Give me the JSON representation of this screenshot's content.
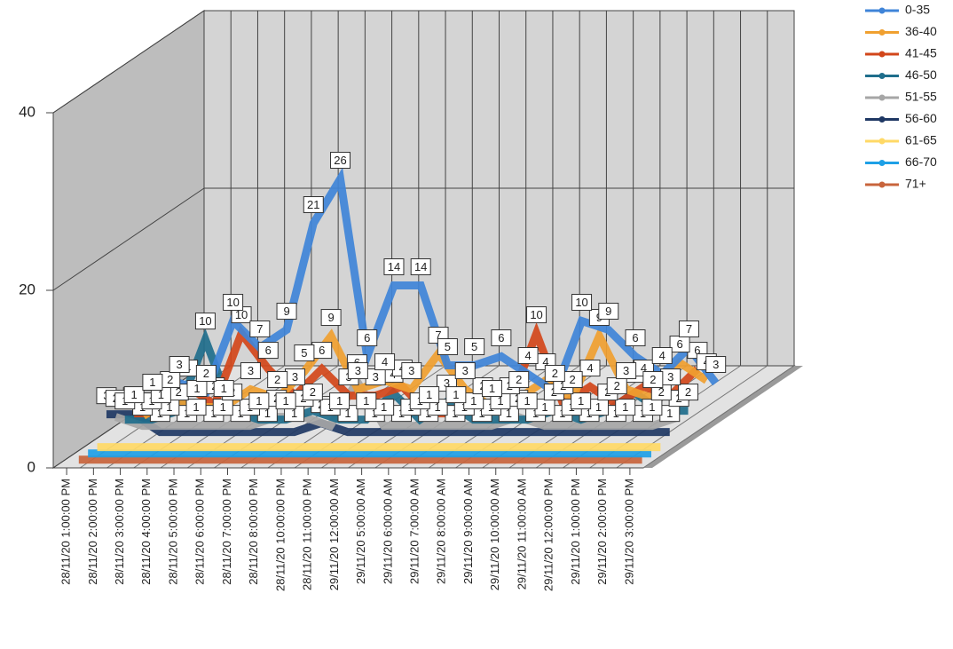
{
  "chart_data": {
    "type": "line3d",
    "categories": [
      "28/11/20 1:00:00 PM",
      "28/11/20 2:00:00 PM",
      "28/11/20 3:00:00 PM",
      "28/11/20 4:00:00 PM",
      "28/11/20 5:00:00 PM",
      "28/11/20 6:00:00 PM",
      "28/11/20 7:00:00 PM",
      "28/11/20 8:00:00 PM",
      "28/11/20 10:00:00 PM",
      "28/11/20 11:00:00 PM",
      "29/11/20 12:00:00 AM",
      "29/11/20 5:00:00 AM",
      "29/11/20 6:00:00 AM",
      "29/11/20 7:00:00 AM",
      "29/11/20 8:00:00 AM",
      "29/11/20 9:00:00 AM",
      "29/11/20 10:00:00 AM",
      "29/11/20 11:00:00 AM",
      "29/11/20 12:00:00 PM",
      "29/11/20 1:00:00 PM",
      "29/11/20 2:00:00 PM",
      "29/11/20 3:00:00 PM"
    ],
    "series": [
      {
        "name": "0-35",
        "color": "#3f84d8",
        "values": [
          1,
          3,
          2,
          10,
          7,
          9,
          21,
          26,
          6,
          14,
          14,
          5,
          5,
          6,
          4,
          2,
          10,
          9,
          6,
          4,
          7,
          3
        ]
      },
      {
        "name": "36-40",
        "color": "#f0a030",
        "values": [
          0,
          2,
          1,
          1,
          3,
          2,
          5,
          9,
          3,
          4,
          3,
          7,
          3,
          1,
          2,
          4,
          2,
          9,
          3,
          2,
          6,
          4
        ]
      },
      {
        "name": "41-45",
        "color": "#d2461a",
        "values": [
          1,
          1,
          4,
          2,
          10,
          6,
          3,
          6,
          3,
          3,
          4,
          1,
          1,
          2,
          2,
          10,
          2,
          4,
          2,
          4,
          3,
          6
        ]
      },
      {
        "name": "46-50",
        "color": "#1f6e8c",
        "values": [
          1,
          1,
          2,
          10,
          2,
          1,
          1,
          2,
          1,
          1,
          4,
          1,
          3,
          1,
          1,
          1,
          2,
          1,
          2,
          4,
          2,
          2
        ]
      },
      {
        "name": "51-55",
        "color": "#a6a6a6",
        "values": [
          2,
          1,
          1,
          1,
          1,
          1,
          2,
          2,
          1,
          6,
          1,
          1,
          1,
          1,
          1,
          2,
          1,
          1,
          1,
          1,
          1,
          2
        ]
      },
      {
        "name": "56-60",
        "color": "#1f3864",
        "values": [
          3,
          3,
          1,
          1,
          1,
          1,
          1,
          1,
          2,
          1,
          1,
          1,
          1,
          1,
          1,
          1,
          1,
          1,
          1,
          1,
          1,
          1
        ]
      },
      {
        "name": "61-65",
        "color": "#ffd966",
        "values": [
          0,
          0,
          0,
          0,
          0,
          0,
          0,
          0,
          0,
          0,
          0,
          0,
          0,
          0,
          0,
          0,
          0,
          0,
          0,
          0,
          0,
          0
        ]
      },
      {
        "name": "66-70",
        "color": "#1ea0e6",
        "values": [
          0,
          0,
          0,
          0,
          0,
          0,
          0,
          0,
          0,
          0,
          0,
          0,
          0,
          0,
          0,
          0,
          0,
          0,
          0,
          0,
          0,
          0
        ]
      },
      {
        "name": "71+",
        "color": "#c8643c",
        "values": [
          0,
          0,
          0,
          0,
          0,
          0,
          0,
          0,
          0,
          0,
          0,
          0,
          0,
          0,
          0,
          0,
          0,
          0,
          0,
          0,
          0,
          0
        ]
      }
    ],
    "ylim": [
      0,
      40
    ],
    "yticks": [
      0,
      20,
      40
    ],
    "grid": true,
    "legend": "top-right"
  }
}
